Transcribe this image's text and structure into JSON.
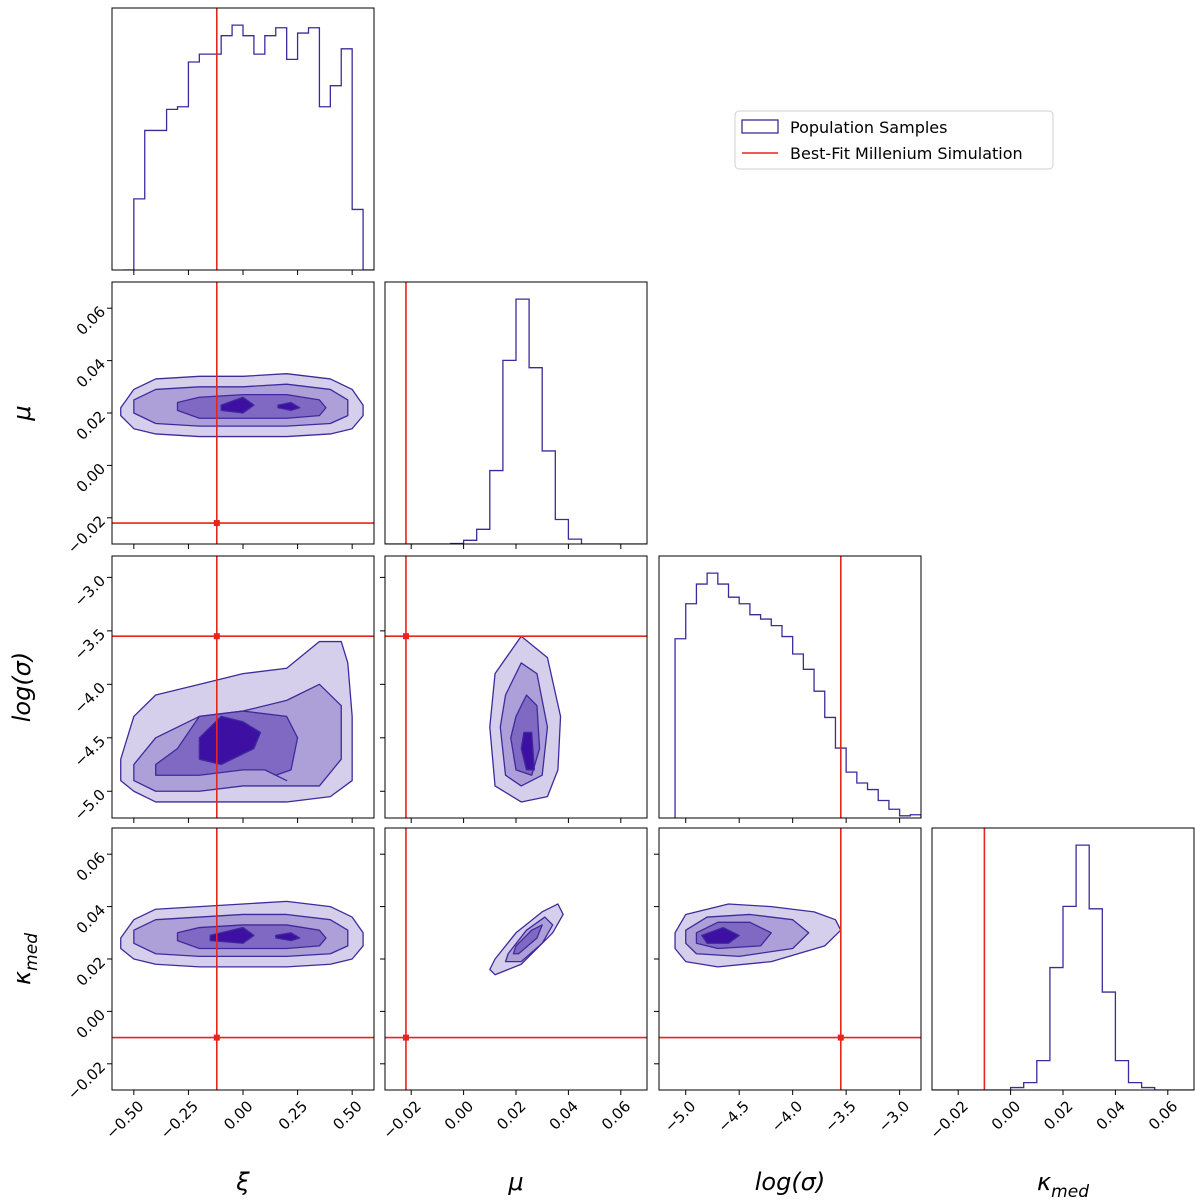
{
  "chart_data": {
    "type": "corner",
    "parameters": [
      {
        "key": "xi",
        "label_base": "ξ",
        "label_sub": ""
      },
      {
        "key": "mu",
        "label_base": "μ",
        "label_sub": ""
      },
      {
        "key": "logsigma",
        "label_base": "log(σ)",
        "label_sub": ""
      },
      {
        "key": "kappa",
        "label_base": "κ",
        "label_sub": "med"
      }
    ],
    "ranges": {
      "xi": [
        -0.6,
        0.6
      ],
      "mu": [
        -0.03,
        0.07
      ],
      "logsigma": [
        -5.25,
        -2.8
      ],
      "kappa": [
        -0.03,
        0.07
      ]
    },
    "ticks": {
      "xi": {
        "values": [
          -0.5,
          -0.25,
          0.0,
          0.25,
          0.5
        ],
        "labels": [
          "−0.50",
          "−0.25",
          "0.00",
          "0.25",
          "0.50"
        ]
      },
      "mu": {
        "values": [
          -0.02,
          0.0,
          0.02,
          0.04,
          0.06
        ],
        "labels": [
          "−0.02",
          "0.00",
          "0.02",
          "0.04",
          "0.06"
        ]
      },
      "logsigma": {
        "values": [
          -5.0,
          -4.5,
          -4.0,
          -3.5,
          -3.0
        ],
        "labels": [
          "−5.0",
          "−4.5",
          "−4.0",
          "−3.5",
          "−3.0"
        ]
      },
      "kappa": {
        "values": [
          -0.02,
          0.0,
          0.02,
          0.04,
          0.06
        ],
        "labels": [
          "−0.02",
          "0.00",
          "0.02",
          "0.04",
          "0.06"
        ]
      }
    },
    "truth": {
      "xi": -0.12,
      "mu": -0.022,
      "logsigma": -3.55,
      "kappa": -0.01
    },
    "legend": {
      "placement": "top-right",
      "entries": [
        {
          "label": "Population Samples",
          "type": "patch",
          "color": "#3f2a9c"
        },
        {
          "label": "Best-Fit Millenium Simulation",
          "type": "line",
          "color": "#e8241c"
        }
      ]
    },
    "histograms": {
      "xi": {
        "edges": [
          -0.55,
          -0.5,
          -0.45,
          -0.4,
          -0.35,
          -0.3,
          -0.25,
          -0.2,
          -0.15,
          -0.1,
          -0.05,
          0.0,
          0.05,
          0.1,
          0.15,
          0.2,
          0.25,
          0.3,
          0.35,
          0.4,
          0.45,
          0.5,
          0.55,
          0.6
        ],
        "counts": [
          0,
          270,
          530,
          530,
          610,
          620,
          790,
          820,
          820,
          890,
          930,
          890,
          820,
          890,
          920,
          800,
          900,
          920,
          620,
          700,
          840,
          230,
          0
        ]
      },
      "mu": {
        "edges": [
          -0.03,
          -0.025,
          -0.02,
          -0.015,
          -0.01,
          -0.005,
          0.0,
          0.005,
          0.01,
          0.015,
          0.02,
          0.025,
          0.03,
          0.035,
          0.04,
          0.045,
          0.05,
          0.055,
          0.06,
          0.065,
          0.07
        ],
        "counts": [
          0,
          0,
          0,
          0,
          0,
          0.2,
          1.5,
          6,
          30,
          75,
          100,
          72,
          38,
          10,
          2,
          0,
          0,
          0,
          0,
          0
        ]
      },
      "logsigma": {
        "edges": [
          -5.1,
          -5.0,
          -4.9,
          -4.8,
          -4.7,
          -4.6,
          -4.5,
          -4.4,
          -4.3,
          -4.2,
          -4.1,
          -4.0,
          -3.9,
          -3.8,
          -3.7,
          -3.6,
          -3.5,
          -3.4,
          -3.3,
          -3.2,
          -3.1,
          -3.0,
          -2.9,
          -2.8
        ],
        "counts": [
          82,
          98,
          107,
          112,
          107,
          101,
          98,
          93,
          91,
          88,
          83,
          75,
          68,
          58,
          46,
          32,
          21,
          16,
          13,
          8,
          4,
          1,
          1.5
        ]
      },
      "kappa": {
        "edges": [
          -0.03,
          -0.025,
          -0.02,
          -0.015,
          -0.01,
          -0.005,
          0.0,
          0.005,
          0.01,
          0.015,
          0.02,
          0.025,
          0.03,
          0.035,
          0.04,
          0.045,
          0.05,
          0.055,
          0.06,
          0.065,
          0.07
        ],
        "counts": [
          0,
          0,
          0,
          0,
          0,
          0,
          1,
          3,
          12,
          50,
          75,
          100,
          74,
          40,
          12,
          3,
          1,
          0,
          0,
          0
        ]
      }
    },
    "contours": {
      "mu_vs_xi": [
        {
          "x": [
            -0.56,
            -0.5,
            -0.4,
            -0.2,
            0.0,
            0.2,
            0.4,
            0.5,
            0.55,
            0.55,
            0.5,
            0.4,
            0.2,
            0.0,
            -0.2,
            -0.4,
            -0.5,
            -0.56
          ],
          "y": [
            0.022,
            0.029,
            0.033,
            0.034,
            0.034,
            0.035,
            0.033,
            0.029,
            0.023,
            0.019,
            0.014,
            0.012,
            0.011,
            0.011,
            0.011,
            0.012,
            0.014,
            0.019
          ]
        },
        {
          "x": [
            -0.5,
            -0.4,
            -0.2,
            0.0,
            0.2,
            0.4,
            0.48,
            0.48,
            0.4,
            0.2,
            0.0,
            -0.2,
            -0.4,
            -0.5
          ],
          "y": [
            0.025,
            0.029,
            0.03,
            0.03,
            0.031,
            0.029,
            0.025,
            0.019,
            0.016,
            0.015,
            0.015,
            0.015,
            0.016,
            0.02
          ]
        },
        {
          "x": [
            -0.3,
            -0.2,
            0.0,
            0.2,
            0.35,
            0.38,
            0.35,
            0.2,
            0.0,
            -0.2,
            -0.3
          ],
          "y": [
            0.024,
            0.026,
            0.027,
            0.027,
            0.025,
            0.022,
            0.019,
            0.018,
            0.018,
            0.018,
            0.021
          ]
        },
        {
          "x": [
            -0.1,
            0.0,
            0.05,
            0.0,
            -0.1
          ],
          "y": [
            0.023,
            0.026,
            0.023,
            0.02,
            0.021
          ]
        },
        {
          "x": [
            0.16,
            0.22,
            0.26,
            0.22,
            0.16
          ],
          "y": [
            0.023,
            0.024,
            0.022,
            0.021,
            0.022
          ]
        }
      ],
      "logsigma_vs_xi": [
        {
          "x": [
            -0.56,
            -0.5,
            -0.4,
            -0.2,
            0.0,
            0.2,
            0.35,
            0.45,
            0.48,
            0.5,
            0.5,
            0.4,
            0.2,
            0.0,
            -0.2,
            -0.4,
            -0.5,
            -0.56
          ],
          "y": [
            -4.7,
            -4.3,
            -4.1,
            -4.0,
            -3.9,
            -3.85,
            -3.6,
            -3.6,
            -3.8,
            -4.3,
            -4.9,
            -5.05,
            -5.1,
            -5.1,
            -5.1,
            -5.1,
            -5.0,
            -4.9
          ]
        },
        {
          "x": [
            -0.5,
            -0.4,
            -0.2,
            0.0,
            0.2,
            0.35,
            0.45,
            0.45,
            0.35,
            0.2,
            0.0,
            -0.2,
            -0.4,
            -0.5
          ],
          "y": [
            -4.75,
            -4.5,
            -4.3,
            -4.25,
            -4.15,
            -4.0,
            -4.2,
            -4.7,
            -4.95,
            -4.95,
            -4.95,
            -5.0,
            -5.0,
            -4.9
          ]
        },
        {
          "x": [
            -0.4,
            -0.3,
            -0.2,
            0.0,
            0.2,
            0.25,
            0.22,
            0.15,
            0.2,
            0.1,
            0.0,
            -0.2,
            -0.4
          ],
          "y": [
            -4.75,
            -4.6,
            -4.3,
            -4.25,
            -4.3,
            -4.5,
            -4.8,
            -4.85,
            -4.9,
            -4.8,
            -4.8,
            -4.85,
            -4.85
          ]
        },
        {
          "x": [
            -0.2,
            -0.1,
            0.0,
            0.08,
            0.05,
            -0.1,
            -0.2
          ],
          "y": [
            -4.5,
            -4.3,
            -4.35,
            -4.45,
            -4.6,
            -4.75,
            -4.7
          ]
        }
      ],
      "logsigma_vs_mu": [
        {
          "x": [
            0.012,
            0.022,
            0.032,
            0.037,
            0.036,
            0.032,
            0.022,
            0.012,
            0.01
          ],
          "y": [
            -3.9,
            -3.55,
            -3.75,
            -4.3,
            -4.8,
            -5.05,
            -5.1,
            -4.95,
            -4.4
          ]
        },
        {
          "x": [
            0.016,
            0.022,
            0.028,
            0.032,
            0.03,
            0.022,
            0.016,
            0.014
          ],
          "y": [
            -4.1,
            -3.8,
            -3.9,
            -4.4,
            -4.85,
            -4.95,
            -4.85,
            -4.4
          ]
        },
        {
          "x": [
            0.02,
            0.024,
            0.028,
            0.029,
            0.026,
            0.02,
            0.018
          ],
          "y": [
            -4.3,
            -4.1,
            -4.2,
            -4.6,
            -4.85,
            -4.8,
            -4.5
          ]
        },
        {
          "x": [
            0.023,
            0.026,
            0.027,
            0.024,
            0.022
          ],
          "y": [
            -4.45,
            -4.45,
            -4.8,
            -4.8,
            -4.6
          ]
        }
      ],
      "kappa_vs_xi": [
        {
          "x": [
            -0.56,
            -0.5,
            -0.4,
            -0.2,
            0.0,
            0.2,
            0.4,
            0.5,
            0.55,
            0.55,
            0.5,
            0.4,
            0.2,
            0.0,
            -0.2,
            -0.4,
            -0.5,
            -0.56
          ],
          "y": [
            0.028,
            0.035,
            0.039,
            0.04,
            0.041,
            0.042,
            0.04,
            0.036,
            0.03,
            0.025,
            0.02,
            0.018,
            0.017,
            0.017,
            0.017,
            0.018,
            0.02,
            0.024
          ]
        },
        {
          "x": [
            -0.5,
            -0.4,
            -0.2,
            0.0,
            0.2,
            0.4,
            0.48,
            0.48,
            0.4,
            0.2,
            0.0,
            -0.2,
            -0.4,
            -0.5
          ],
          "y": [
            0.031,
            0.035,
            0.036,
            0.037,
            0.037,
            0.035,
            0.031,
            0.025,
            0.022,
            0.021,
            0.021,
            0.021,
            0.022,
            0.026
          ]
        },
        {
          "x": [
            -0.3,
            -0.2,
            0.0,
            0.2,
            0.35,
            0.38,
            0.35,
            0.2,
            0.0,
            -0.2,
            -0.3
          ],
          "y": [
            0.03,
            0.032,
            0.033,
            0.033,
            0.031,
            0.028,
            0.025,
            0.024,
            0.024,
            0.024,
            0.027
          ]
        },
        {
          "x": [
            -0.15,
            0.0,
            0.05,
            0.0,
            -0.15
          ],
          "y": [
            0.029,
            0.032,
            0.029,
            0.026,
            0.027
          ]
        },
        {
          "x": [
            0.15,
            0.22,
            0.26,
            0.22,
            0.15
          ],
          "y": [
            0.029,
            0.03,
            0.028,
            0.027,
            0.028
          ]
        }
      ],
      "kappa_vs_mu": [
        {
          "x": [
            0.012,
            0.02,
            0.03,
            0.036,
            0.038,
            0.034,
            0.022,
            0.012,
            0.01
          ],
          "y": [
            0.02,
            0.03,
            0.038,
            0.041,
            0.037,
            0.03,
            0.018,
            0.014,
            0.016
          ]
        },
        {
          "x": [
            0.017,
            0.024,
            0.031,
            0.034,
            0.03,
            0.022,
            0.016
          ],
          "y": [
            0.022,
            0.031,
            0.036,
            0.033,
            0.026,
            0.019,
            0.019
          ]
        },
        {
          "x": [
            0.02,
            0.026,
            0.03,
            0.028,
            0.021,
            0.019
          ],
          "y": [
            0.025,
            0.031,
            0.033,
            0.028,
            0.022,
            0.022
          ]
        }
      ],
      "kappa_vs_logsigma": [
        {
          "x": [
            -5.1,
            -5.0,
            -4.6,
            -4.2,
            -3.8,
            -3.6,
            -3.55,
            -3.7,
            -4.2,
            -4.7,
            -5.0,
            -5.1
          ],
          "y": [
            0.03,
            0.037,
            0.041,
            0.04,
            0.038,
            0.035,
            0.031,
            0.025,
            0.019,
            0.017,
            0.019,
            0.024
          ]
        },
        {
          "x": [
            -5.0,
            -4.8,
            -4.4,
            -4.0,
            -3.85,
            -4.0,
            -4.5,
            -4.9,
            -5.0
          ],
          "y": [
            0.031,
            0.036,
            0.037,
            0.035,
            0.03,
            0.024,
            0.021,
            0.022,
            0.026
          ]
        },
        {
          "x": [
            -4.9,
            -4.7,
            -4.4,
            -4.2,
            -4.3,
            -4.7,
            -4.9
          ],
          "y": [
            0.03,
            0.034,
            0.034,
            0.03,
            0.025,
            0.024,
            0.026
          ]
        },
        {
          "x": [
            -4.85,
            -4.65,
            -4.5,
            -4.6,
            -4.8
          ],
          "y": [
            0.029,
            0.032,
            0.029,
            0.026,
            0.026
          ]
        }
      ]
    },
    "fill_colors": [
      "#d6cfeb",
      "#ad9fd8",
      "#8069c2",
      "#3d0fa3"
    ],
    "line_color": "#3f2a9c",
    "truth_color": "#e8241c"
  }
}
